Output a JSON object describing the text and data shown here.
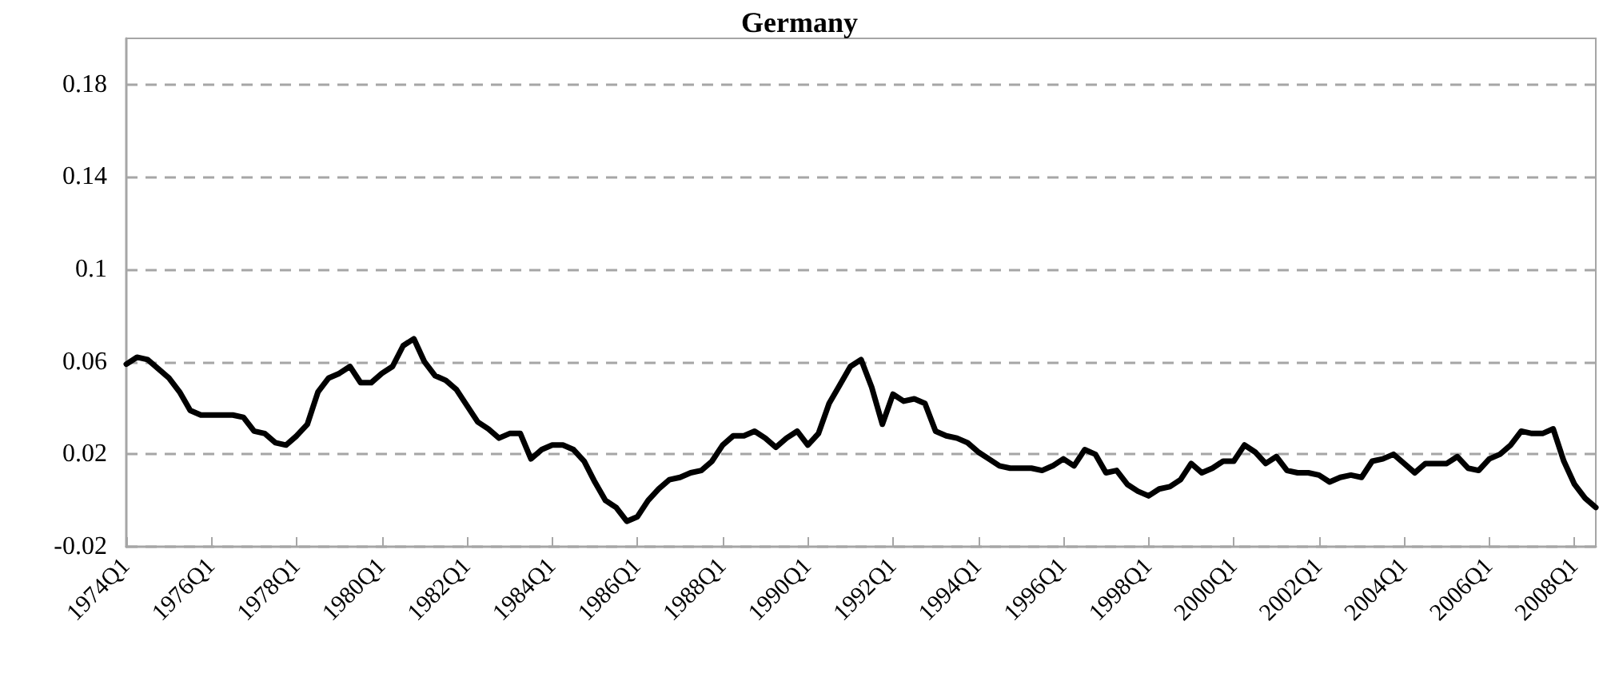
{
  "chart_data": {
    "type": "line",
    "title": "Germany",
    "categories": [
      "1974Q1",
      null,
      null,
      null,
      null,
      null,
      null,
      null,
      "1976Q1",
      null,
      null,
      null,
      null,
      null,
      null,
      null,
      "1978Q1",
      null,
      null,
      null,
      null,
      null,
      null,
      null,
      "1980Q1",
      null,
      null,
      null,
      null,
      null,
      null,
      null,
      "1982Q1",
      null,
      null,
      null,
      null,
      null,
      null,
      null,
      "1984Q1",
      null,
      null,
      null,
      null,
      null,
      null,
      null,
      "1986Q1",
      null,
      null,
      null,
      null,
      null,
      null,
      null,
      "1988Q1",
      null,
      null,
      null,
      null,
      null,
      null,
      null,
      "1990Q1",
      null,
      null,
      null,
      null,
      null,
      null,
      null,
      "1992Q1",
      null,
      null,
      null,
      null,
      null,
      null,
      null,
      "1994Q1",
      null,
      null,
      null,
      null,
      null,
      null,
      null,
      "1996Q1",
      null,
      null,
      null,
      null,
      null,
      null,
      null,
      "1998Q1",
      null,
      null,
      null,
      null,
      null,
      null,
      null,
      "2000Q1",
      null,
      null,
      null,
      null,
      null,
      null,
      null,
      "2002Q1",
      null,
      null,
      null,
      null,
      null,
      null,
      null,
      "2004Q1",
      null,
      null,
      null,
      null,
      null,
      null,
      null,
      "2006Q1",
      null,
      null,
      null,
      null,
      null,
      null,
      null,
      "2008Q1",
      null,
      null
    ],
    "series": [
      {
        "color": "#000000",
        "values": [
          0.059,
          0.062,
          0.061,
          0.057,
          0.053,
          0.047,
          0.039,
          0.037,
          0.037,
          0.037,
          0.037,
          0.036,
          0.03,
          0.029,
          0.025,
          0.024,
          0.028,
          0.033,
          0.047,
          0.053,
          0.055,
          0.058,
          0.051,
          0.051,
          0.055,
          0.058,
          0.067,
          0.07,
          0.06,
          0.054,
          0.052,
          0.048,
          0.041,
          0.034,
          0.031,
          0.027,
          0.029,
          0.029,
          0.018,
          0.022,
          0.024,
          0.024,
          0.022,
          0.017,
          0.008,
          0.0,
          -0.003,
          -0.009,
          -0.007,
          0.0,
          0.005,
          0.009,
          0.01,
          0.012,
          0.013,
          0.017,
          0.024,
          0.028,
          0.028,
          0.03,
          0.027,
          0.023,
          0.027,
          0.03,
          0.024,
          0.029,
          0.042,
          0.05,
          0.058,
          0.061,
          0.049,
          0.033,
          0.046,
          0.043,
          0.044,
          0.042,
          0.03,
          0.028,
          0.027,
          0.025,
          0.021,
          0.018,
          0.015,
          0.014,
          0.014,
          0.014,
          0.013,
          0.015,
          0.018,
          0.015,
          0.022,
          0.02,
          0.012,
          0.013,
          0.007,
          0.004,
          0.002,
          0.005,
          0.006,
          0.009,
          0.016,
          0.012,
          0.014,
          0.017,
          0.017,
          0.024,
          0.021,
          0.016,
          0.019,
          0.013,
          0.012,
          0.012,
          0.011,
          0.008,
          0.01,
          0.011,
          0.01,
          0.017,
          0.018,
          0.02,
          0.016,
          0.012,
          0.016,
          0.016,
          0.016,
          0.019,
          0.014,
          0.013,
          0.018,
          0.02,
          0.024,
          0.03,
          0.029,
          0.029,
          0.031,
          0.017,
          0.007,
          0.001,
          -0.003
        ]
      }
    ],
    "ylim": [
      -0.02,
      0.2
    ],
    "yticks": [
      -0.02,
      0.02,
      0.06,
      0.1,
      0.14,
      0.18
    ],
    "grid": "y",
    "marker": "none",
    "line_style": "solid"
  }
}
